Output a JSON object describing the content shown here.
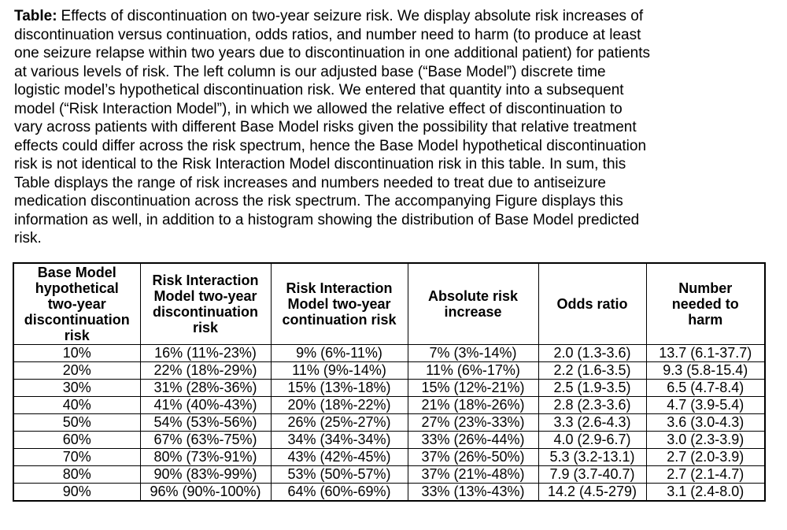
{
  "caption": {
    "label": "Table:",
    "lines": [
      "Effects of discontinuation on two-year seizure risk. We display absolute risk increases of",
      "discontinuation versus continuation, odds ratios, and number need to harm (to produce at least",
      "one seizure relapse within two years due to discontinuation in one additional patient) for patients",
      "at various levels of risk. The left column is our adjusted base (“Base Model”) discrete time",
      "logistic model’s hypothetical discontinuation risk. We entered that quantity into a subsequent",
      "model (“Risk Interaction Model”), in which we allowed the relative effect of discontinuation to",
      "vary across patients with different Base Model risks given the possibility that relative treatment",
      "effects could differ across the risk spectrum, hence the Base Model hypothetical discontinuation",
      "risk is not identical to the Risk Interaction Model discontinuation risk in this table. In sum, this",
      "Table displays the range of risk increases and numbers needed to treat due to antiseizure",
      "medication discontinuation across the risk spectrum. The accompanying Figure displays this",
      "information as well, in addition to a histogram showing the distribution of Base Model predicted",
      "risk."
    ]
  },
  "table": {
    "columns": [
      {
        "name": "base-model-hypothetical-risk",
        "label": "Base Model hypothetical two-year discontinuation risk",
        "lines": [
          "Base Model",
          "hypothetical",
          "two-year",
          "discontinuation",
          "risk"
        ]
      },
      {
        "name": "risk-interaction-discontinuation-risk",
        "label": "Risk Interaction Model two-year discontinuation risk",
        "lines": [
          "Risk Interaction",
          "Model two-year",
          "discontinuation",
          "risk"
        ]
      },
      {
        "name": "risk-interaction-continuation-risk",
        "label": "Risk Interaction Model two-year continuation risk",
        "lines": [
          "Risk Interaction",
          "Model two-year",
          "continuation risk"
        ]
      },
      {
        "name": "absolute-risk-increase",
        "label": "Absolute risk increase",
        "lines": [
          "Absolute risk",
          "increase"
        ]
      },
      {
        "name": "odds-ratio",
        "label": "Odds ratio",
        "lines": [
          "Odds ratio"
        ]
      },
      {
        "name": "number-needed-to-harm",
        "label": "Number needed to harm",
        "lines": [
          "Number",
          "needed to",
          "harm"
        ]
      }
    ],
    "rows": [
      [
        "10%",
        "16% (11%-23%)",
        "9% (6%-11%)",
        "7% (3%-14%)",
        "2.0 (1.3-3.6)",
        "13.7 (6.1-37.7)"
      ],
      [
        "20%",
        "22% (18%-29%)",
        "11% (9%-14%)",
        "11% (6%-17%)",
        "2.2 (1.6-3.5)",
        "9.3 (5.8-15.4)"
      ],
      [
        "30%",
        "31% (28%-36%)",
        "15% (13%-18%)",
        "15% (12%-21%)",
        "2.5 (1.9-3.5)",
        "6.5 (4.7-8.4)"
      ],
      [
        "40%",
        "41% (40%-43%)",
        "20% (18%-22%)",
        "21% (18%-26%)",
        "2.8 (2.3-3.6)",
        "4.7 (3.9-5.4)"
      ],
      [
        "50%",
        "54% (53%-56%)",
        "26% (25%-27%)",
        "27% (23%-33%)",
        "3.3 (2.6-4.3)",
        "3.6 (3.0-4.3)"
      ],
      [
        "60%",
        "67% (63%-75%)",
        "34% (34%-34%)",
        "33% (26%-44%)",
        "4.0 (2.9-6.7)",
        "3.0 (2.3-3.9)"
      ],
      [
        "70%",
        "80% (73%-91%)",
        "43% (42%-45%)",
        "37% (26%-50%)",
        "5.3 (3.2-13.1)",
        "2.7 (2.0-3.9)"
      ],
      [
        "80%",
        "90% (83%-99%)",
        "53% (50%-57%)",
        "37% (21%-48%)",
        "7.9 (3.7-40.7)",
        "2.7 (2.1-4.7)"
      ],
      [
        "90%",
        "96% (90%-100%)",
        "64% (60%-69%)",
        "33% (13%-43%)",
        "14.2 (4.5-279)",
        "3.1 (2.4-8.0)"
      ]
    ]
  },
  "colors": {
    "text": "#000000",
    "background": "#ffffff",
    "border": "#000000"
  }
}
